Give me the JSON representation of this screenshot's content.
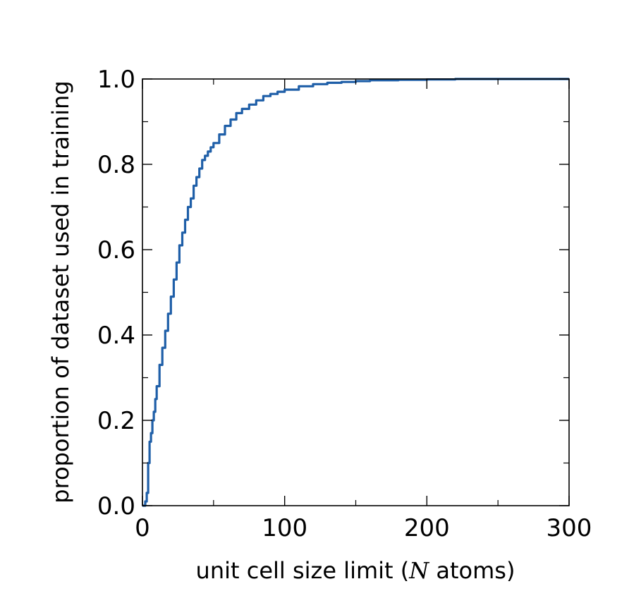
{
  "chart_data": {
    "type": "line",
    "title": "",
    "xlabel_prefix": "unit cell size limit (",
    "xlabel_var": "N",
    "xlabel_suffix": " atoms)",
    "ylabel": "proportion of dataset used in training",
    "xlim": [
      0,
      300
    ],
    "ylim": [
      0,
      1.0
    ],
    "x_ticks": [
      0,
      100,
      200,
      300
    ],
    "x_tick_labels": [
      "0",
      "100",
      "200",
      "300"
    ],
    "x_minor_ticks": [
      50,
      150,
      250
    ],
    "y_ticks": [
      0,
      0.2,
      0.4,
      0.6,
      0.8,
      1.0
    ],
    "y_tick_labels": [
      "0.0",
      "0.2",
      "0.4",
      "0.6",
      "0.8",
      "1.0"
    ],
    "y_minor_ticks": [
      0.1,
      0.3,
      0.5,
      0.7,
      0.9
    ],
    "grid": false,
    "line_color": "#1f5fa8",
    "series": [
      {
        "x": [
          0,
          2,
          3,
          4,
          5,
          6,
          7,
          8,
          9,
          10,
          12,
          14,
          16,
          18,
          20,
          22,
          24,
          26,
          28,
          30,
          32,
          34,
          36,
          38,
          40,
          42,
          44,
          46,
          48,
          50,
          54,
          58,
          62,
          66,
          70,
          75,
          80,
          85,
          90,
          95,
          100,
          110,
          120,
          130,
          140,
          150,
          160,
          180,
          200,
          220,
          250,
          300
        ],
        "y": [
          0,
          0.01,
          0.03,
          0.1,
          0.15,
          0.17,
          0.2,
          0.22,
          0.25,
          0.28,
          0.33,
          0.37,
          0.41,
          0.45,
          0.49,
          0.53,
          0.57,
          0.61,
          0.64,
          0.67,
          0.7,
          0.72,
          0.75,
          0.77,
          0.79,
          0.81,
          0.82,
          0.83,
          0.84,
          0.85,
          0.87,
          0.89,
          0.905,
          0.92,
          0.93,
          0.94,
          0.95,
          0.96,
          0.965,
          0.97,
          0.975,
          0.983,
          0.988,
          0.991,
          0.993,
          0.995,
          0.997,
          0.998,
          0.999,
          1.0,
          1.0,
          1.0
        ]
      }
    ]
  }
}
